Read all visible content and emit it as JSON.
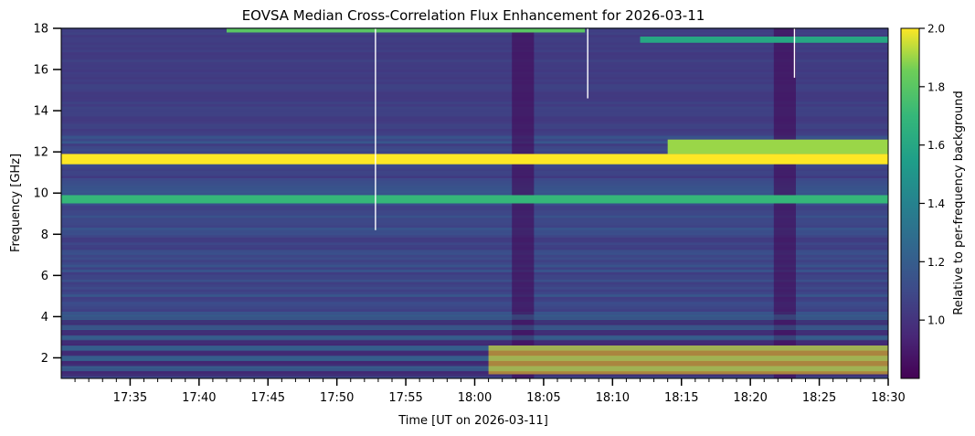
{
  "chart_data": {
    "type": "heatmap",
    "title": "EOVSA Median Cross-Correlation Flux Enhancement for 2026-03-11",
    "xlabel": "Time [UT on 2026-03-11]",
    "ylabel": "Frequency [GHz]",
    "colorbar_label": "Relative to per-frequency background",
    "colormap": "viridis",
    "colors": {
      "low": "#440154",
      "mid": "#21918c",
      "high": "#fde725",
      "base": "#3b4f8c"
    },
    "x_range": [
      "17:30",
      "18:30"
    ],
    "xlim_minutes_after_1730": [
      0,
      60
    ],
    "x_ticks": [
      {
        "label": "17:35",
        "value": 5
      },
      {
        "label": "17:40",
        "value": 10
      },
      {
        "label": "17:45",
        "value": 15
      },
      {
        "label": "17:50",
        "value": 20
      },
      {
        "label": "17:55",
        "value": 25
      },
      {
        "label": "18:00",
        "value": 30
      },
      {
        "label": "18:05",
        "value": 35
      },
      {
        "label": "18:10",
        "value": 40
      },
      {
        "label": "18:15",
        "value": 45
      },
      {
        "label": "18:20",
        "value": 50
      },
      {
        "label": "18:25",
        "value": 55
      },
      {
        "label": "18:30",
        "value": 60
      }
    ],
    "ylim": [
      1.0,
      18.0
    ],
    "y_ticks": [
      {
        "label": "2",
        "value": 2
      },
      {
        "label": "4",
        "value": 4
      },
      {
        "label": "6",
        "value": 6
      },
      {
        "label": "8",
        "value": 8
      },
      {
        "label": "10",
        "value": 10
      },
      {
        "label": "12",
        "value": 12
      },
      {
        "label": "14",
        "value": 14
      },
      {
        "label": "16",
        "value": 16
      },
      {
        "label": "18",
        "value": 18
      }
    ],
    "color_range": [
      0.8,
      2.0
    ],
    "colorbar_ticks": [
      {
        "label": "1.0",
        "value": 1.0
      },
      {
        "label": "1.2",
        "value": 1.2
      },
      {
        "label": "1.4",
        "value": 1.4
      },
      {
        "label": "1.6",
        "value": 1.6
      },
      {
        "label": "1.8",
        "value": 1.8
      },
      {
        "label": "2.0",
        "value": 2.0
      }
    ],
    "features": {
      "bright_bands": [
        {
          "freq_ghz": [
            11.4,
            11.9
          ],
          "time_min": [
            0,
            60
          ],
          "level": 2.0
        },
        {
          "freq_ghz": [
            11.9,
            12.6
          ],
          "time_min": [
            44,
            60
          ],
          "level": 1.9
        },
        {
          "freq_ghz": [
            9.5,
            9.9
          ],
          "time_min": [
            0,
            60
          ],
          "level": 1.7
        },
        {
          "freq_ghz": [
            1.2,
            2.6
          ],
          "time_min": [
            31,
            60
          ],
          "level": 2.0
        },
        {
          "freq_ghz": [
            17.8,
            18.0
          ],
          "time_min": [
            12,
            38
          ],
          "level": 1.8
        },
        {
          "freq_ghz": [
            17.3,
            17.6
          ],
          "time_min": [
            42,
            60
          ],
          "level": 1.6
        }
      ],
      "dark_vertical_bands_min": [
        33.5,
        52.5
      ],
      "white_gaps": [
        {
          "time_min": 22.8,
          "freq_ghz": [
            8.2,
            18.0
          ]
        },
        {
          "time_min": 38.2,
          "freq_ghz": [
            14.6,
            18.0
          ]
        },
        {
          "time_min": 53.2,
          "freq_ghz": [
            15.6,
            18.0
          ]
        }
      ]
    }
  }
}
